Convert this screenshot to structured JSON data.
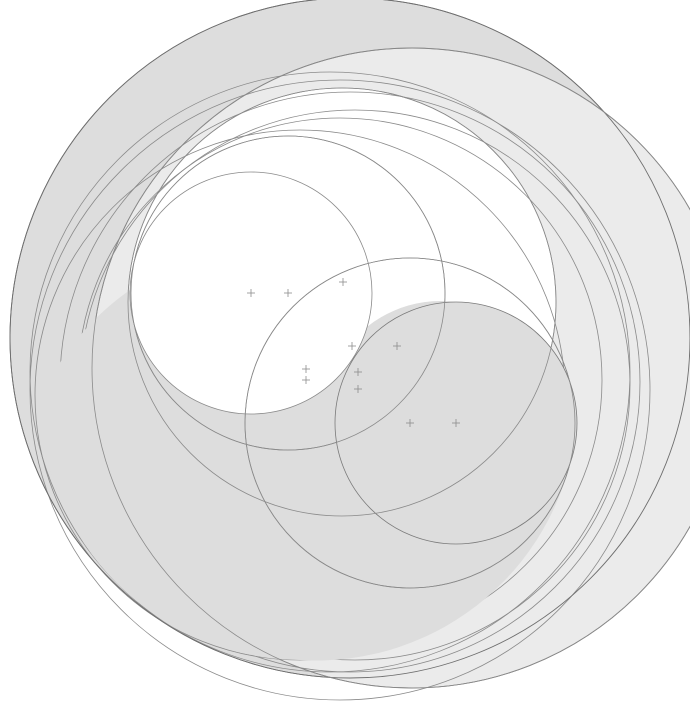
{
  "colors": {
    "background": "#ffffff",
    "shade_dark": "#dddddd",
    "shade_light": "#ebebeb",
    "stroke": "#8a8a8a"
  },
  "diagram": {
    "description_free": true,
    "circle_count": 14,
    "center_mark_count": 11
  }
}
